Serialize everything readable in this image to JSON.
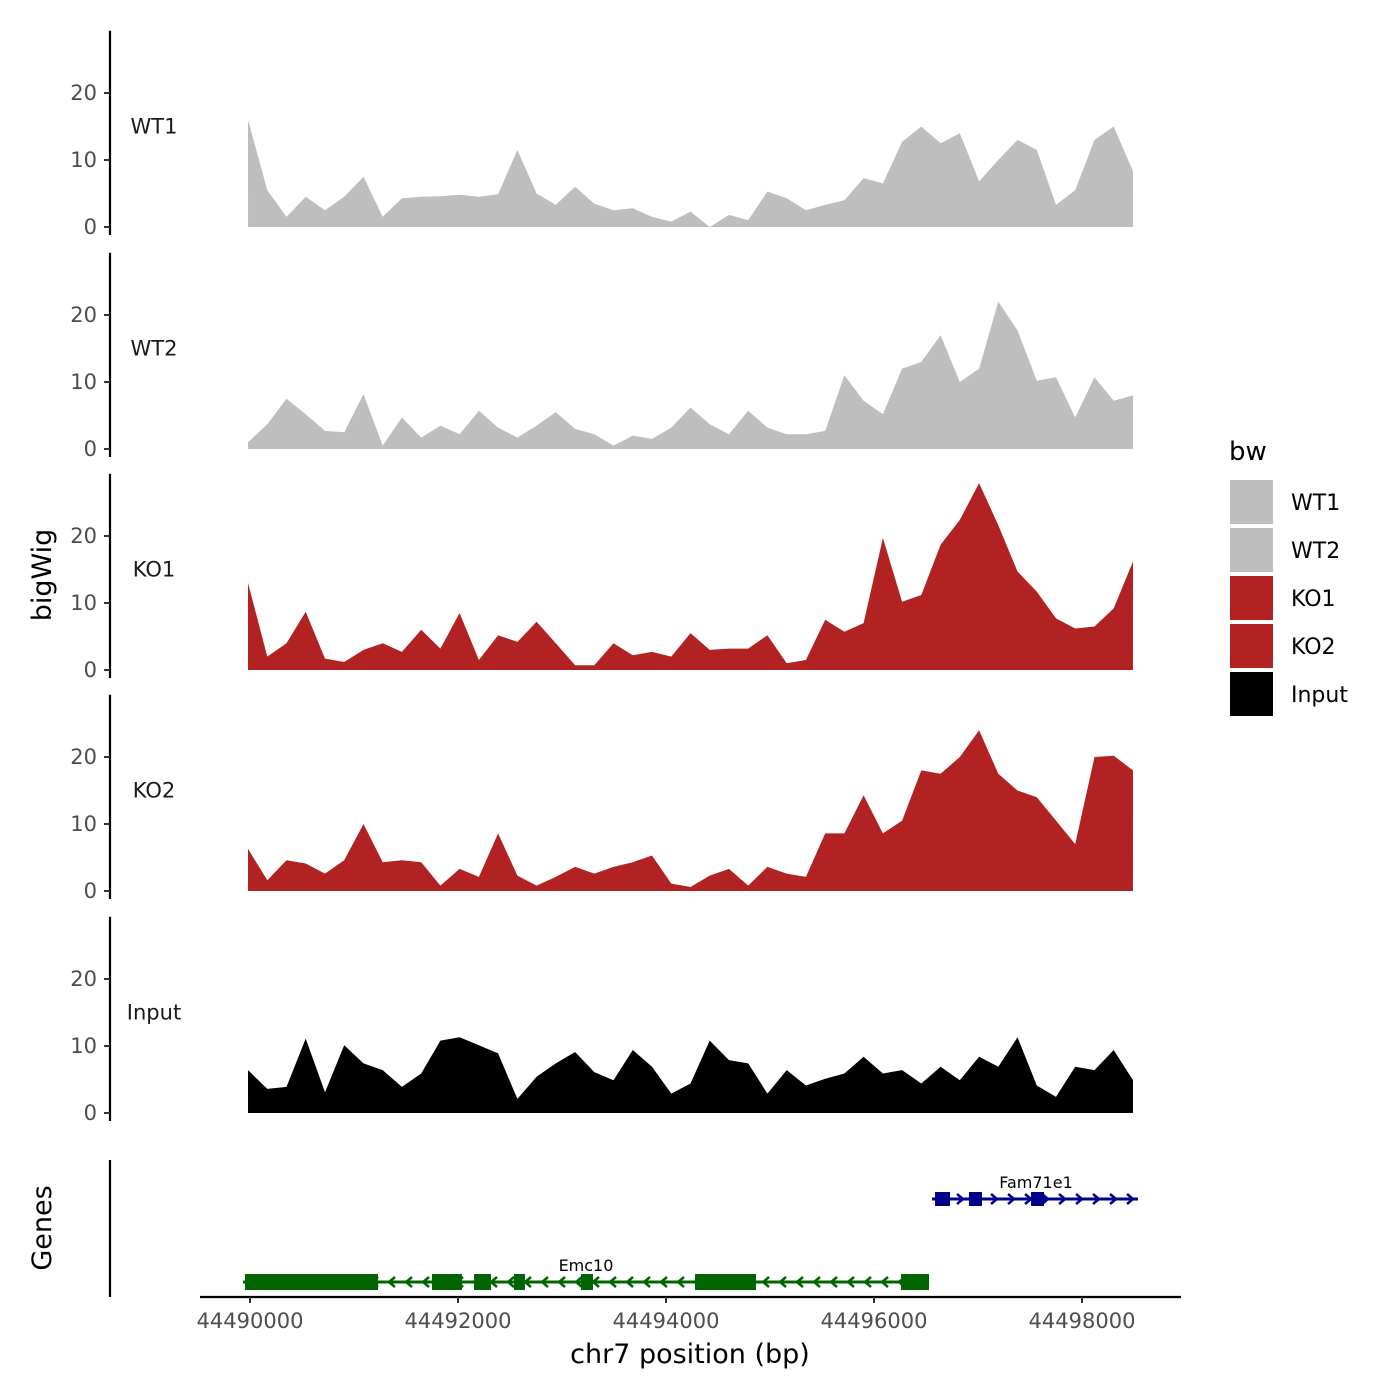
{
  "chart_data": {
    "type": "area",
    "xlabel": "chr7 position (bp)",
    "ylabel": "bigWig",
    "genes_label": "Genes",
    "xlim": [
      44489500,
      44498900
    ],
    "xticks": [
      44490000,
      44492000,
      44494000,
      44496000,
      44498000
    ],
    "xtick_labels": [
      "44490000",
      "44492000",
      "44494000",
      "44496000",
      "44498000"
    ],
    "ylim": [
      -1.2,
      29.3
    ],
    "yticks": [
      0,
      10,
      20
    ],
    "ytick_labels": [
      "0",
      "10",
      "20"
    ],
    "legend": {
      "title": "bw",
      "placement": "right",
      "entries": [
        {
          "label": "WT1",
          "color": "#BEBEBE"
        },
        {
          "label": "WT2",
          "color": "#BEBEBE"
        },
        {
          "label": "KO1",
          "color": "#B22222"
        },
        {
          "label": "KO2",
          "color": "#B22222"
        },
        {
          "label": "Input",
          "color": "#000000"
        }
      ]
    },
    "x_start": 44489981,
    "x_end": 44498490,
    "series": [
      {
        "name": "WT1",
        "color": "#BEBEBE",
        "values": [
          16,
          5.5,
          1.5,
          4.5,
          2.5,
          4.5,
          7.5,
          1.5,
          4.3,
          4.5,
          4.6,
          4.8,
          4.5,
          4.9,
          11.5,
          5,
          3.3,
          6,
          3.5,
          2.5,
          2.8,
          1.5,
          0.8,
          2.3,
          0,
          1.8,
          1,
          5.3,
          4.3,
          2.5,
          3.3,
          4,
          7.3,
          6.5,
          12.7,
          15,
          12.5,
          14,
          6.8,
          10,
          13,
          11.5,
          3.3,
          5.5,
          13,
          15,
          8.3
        ]
      },
      {
        "name": "WT2",
        "color": "#BEBEBE",
        "values": [
          1,
          3.7,
          7.5,
          5.2,
          2.7,
          2.5,
          8.2,
          0.5,
          4.7,
          1.7,
          3.5,
          2.2,
          5.7,
          3.2,
          1.7,
          3.5,
          5.5,
          3,
          2.2,
          0.5,
          2,
          1.5,
          3.2,
          6.2,
          3.7,
          2.2,
          5.7,
          3.2,
          2.2,
          2.2,
          2.7,
          11,
          7.2,
          5.2,
          12,
          13,
          17,
          10,
          12,
          22,
          17.7,
          10.2,
          10.7,
          4.7,
          10.7,
          7.2,
          8
        ]
      },
      {
        "name": "KO1",
        "color": "#B22222",
        "values": [
          13,
          2,
          4,
          8.7,
          1.7,
          1.2,
          3,
          4,
          2.7,
          6,
          3.2,
          8.5,
          1.5,
          5.2,
          4.2,
          7.2,
          4,
          0.7,
          0.7,
          4,
          2.2,
          2.7,
          2,
          5.5,
          3,
          3.2,
          3.2,
          5.2,
          1,
          1.5,
          7.5,
          5.7,
          7,
          19.7,
          10.2,
          11.2,
          18.7,
          22.4,
          27.9,
          21.6,
          14.7,
          11.7,
          7.7,
          6.2,
          6.5,
          9.2,
          16.2
        ]
      },
      {
        "name": "KO2",
        "color": "#B22222",
        "values": [
          6.3,
          1.6,
          4.6,
          4.1,
          2.6,
          4.6,
          10,
          4.3,
          4.6,
          4.3,
          0.8,
          3.3,
          2.1,
          8.6,
          2.3,
          0.8,
          2.1,
          3.6,
          2.6,
          3.6,
          4.3,
          5.3,
          1.1,
          0.6,
          2.3,
          3.3,
          0.8,
          3.6,
          2.6,
          2.1,
          8.6,
          8.6,
          14.3,
          8.6,
          10.5,
          18,
          17.5,
          20,
          24,
          17.5,
          15,
          14,
          10.5,
          7,
          20,
          20.2,
          18
        ]
      },
      {
        "name": "Input",
        "color": "#000000",
        "values": [
          6.4,
          3.6,
          3.9,
          11.1,
          3.1,
          10.1,
          7.4,
          6.4,
          3.9,
          5.9,
          10.8,
          11.3,
          10.1,
          8.9,
          2.1,
          5.4,
          7.4,
          9.1,
          6.1,
          4.9,
          9.4,
          6.9,
          2.9,
          4.4,
          10.8,
          7.9,
          7.4,
          2.9,
          6.4,
          4.1,
          5.1,
          5.9,
          8.4,
          5.9,
          6.4,
          4.4,
          6.9,
          4.9,
          8.4,
          6.9,
          11.3,
          4.1,
          2.4,
          6.9,
          6.4,
          9.4,
          4.9
        ]
      }
    ],
    "genes": [
      {
        "name": "Emc10",
        "strand": "-",
        "color": "#006400",
        "start": 44489933,
        "end": 44496529,
        "exons": [
          [
            44489952,
            44491231
          ],
          [
            44491750,
            44492038
          ],
          [
            44492154,
            44492317
          ],
          [
            44492538,
            44492644
          ],
          [
            44493183,
            44493298
          ],
          [
            44494279,
            44494865
          ],
          [
            44496260,
            44496529
          ]
        ]
      },
      {
        "name": "Fam71e1",
        "strand": "+",
        "color": "#00008B",
        "start": 44496558,
        "end": 44498538,
        "exons": [
          [
            44496587,
            44496731
          ],
          [
            44496913,
            44497038
          ],
          [
            44497510,
            44497635
          ]
        ]
      }
    ]
  }
}
